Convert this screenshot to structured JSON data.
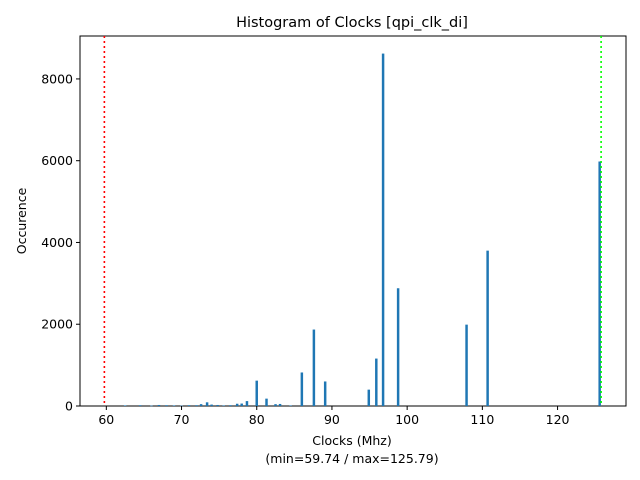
{
  "chart_data": {
    "type": "bar",
    "title": "Histogram of Clocks [qpi_clk_di]",
    "xlabel": "Clocks (Mhz)",
    "xlabel_sub": "(min=59.74 / max=125.79)",
    "ylabel": "Occurence",
    "xlim": [
      56.5,
      129.1
    ],
    "ylim": [
      0,
      9050
    ],
    "xticks": [
      60,
      70,
      80,
      90,
      100,
      110,
      120
    ],
    "yticks": [
      0,
      2000,
      4000,
      6000,
      8000
    ],
    "grid": false,
    "bar_color": "#1f77b4",
    "bar_width": 0.33,
    "x": [
      62.5,
      64.5,
      66.0,
      67.0,
      68.0,
      69.0,
      70.0,
      71.0,
      72.0,
      72.6,
      73.4,
      74.0,
      74.8,
      75.6,
      76.5,
      77.4,
      78.0,
      78.7,
      80.0,
      81.3,
      82.5,
      83.1,
      84.5,
      86.0,
      87.6,
      89.1,
      94.9,
      95.9,
      96.8,
      98.8,
      107.9,
      110.7,
      125.6
    ],
    "values": [
      15,
      20,
      10,
      25,
      20,
      15,
      10,
      20,
      20,
      45,
      90,
      35,
      25,
      15,
      20,
      55,
      60,
      120,
      620,
      180,
      45,
      50,
      15,
      820,
      1870,
      600,
      400,
      1160,
      8620,
      2880,
      1990,
      3800,
      5980
    ],
    "markers": [
      {
        "x": 59.74,
        "label": "min",
        "color": "#ff0000"
      },
      {
        "x": 125.79,
        "label": "max",
        "color": "#00ff00"
      }
    ]
  }
}
